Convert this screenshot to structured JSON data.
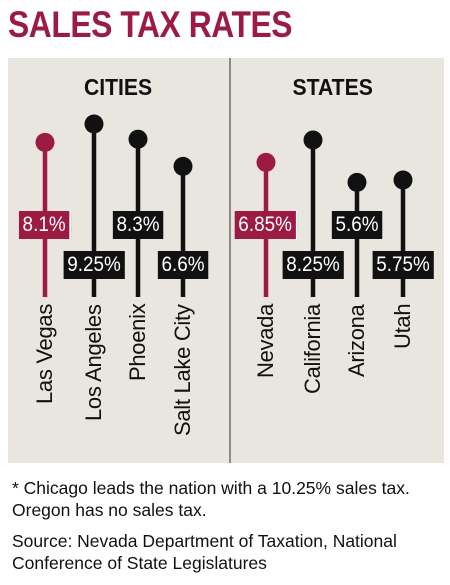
{
  "chart_data": {
    "type": "lollipop",
    "title": "SALES TAX RATES",
    "unit": "%",
    "highlight_color": "#9c1b45",
    "default_color": "#111111",
    "groups": [
      {
        "name": "CITIES",
        "items": [
          {
            "label": "Las Vegas",
            "value": 8.1,
            "value_text": "8.1%",
            "highlight": true
          },
          {
            "label": "Los Angeles",
            "value": 9.25,
            "value_text": "9.25%",
            "highlight": false
          },
          {
            "label": "Phoenix",
            "value": 8.3,
            "value_text": "8.3%",
            "highlight": false
          },
          {
            "label": "Salt Lake City",
            "value": 6.6,
            "value_text": "6.6%",
            "highlight": false
          }
        ]
      },
      {
        "name": "STATES",
        "items": [
          {
            "label": "Nevada",
            "value": 6.85,
            "value_text": "6.85%",
            "highlight": true
          },
          {
            "label": "California",
            "value": 8.25,
            "value_text": "8.25%",
            "highlight": false
          },
          {
            "label": "Arizona",
            "value": 5.6,
            "value_text": "5.6%",
            "highlight": false
          },
          {
            "label": "Utah",
            "value": 5.75,
            "value_text": "5.75%",
            "highlight": false
          }
        ]
      }
    ]
  },
  "footnote": "* Chicago leads the nation with a 10.25% sales tax. Oregon has no sales tax.",
  "source": "Source: Nevada Department of Taxation, National Conference of State Legislatures"
}
